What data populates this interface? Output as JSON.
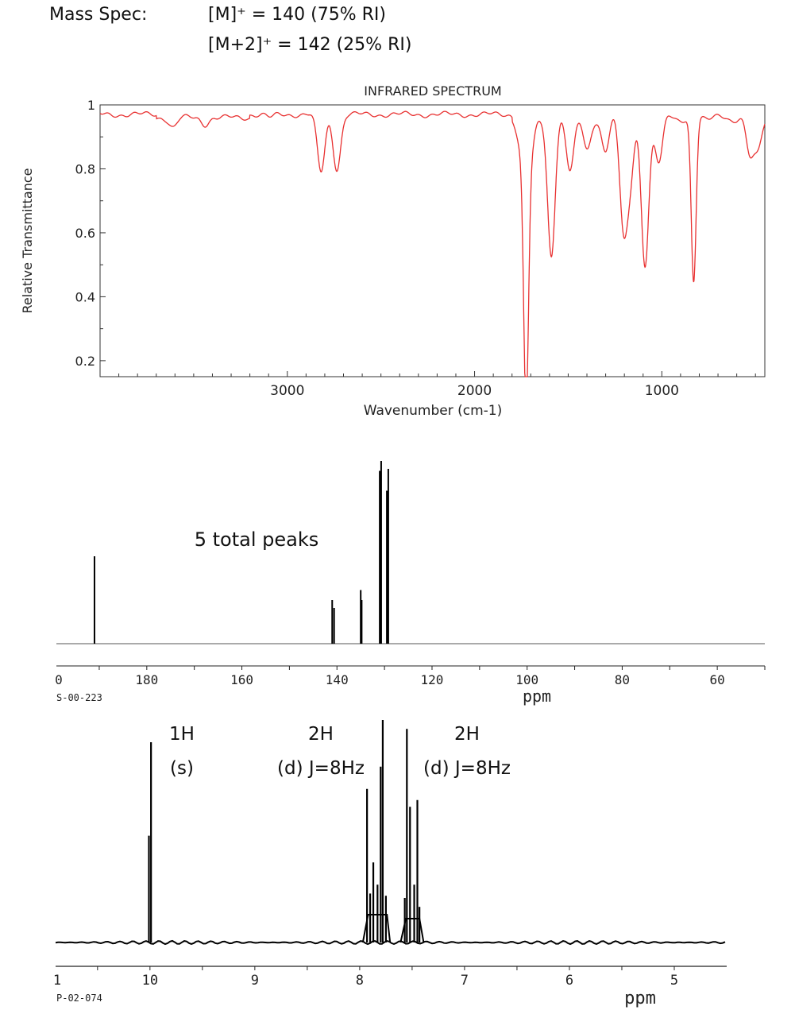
{
  "mass_spec": {
    "label": "Mass Spec:",
    "line1": "[M]⁺ = 140 (75% RI)",
    "line2": "[M+2]⁺ = 142 (25% RI)"
  },
  "chart_data": [
    {
      "type": "line",
      "title": "INFRARED SPECTRUM",
      "xlabel": "Wavenumber (cm-1)",
      "ylabel": "Relative Transmittance",
      "xlim": [
        4000,
        450
      ],
      "ylim": [
        0.15,
        1.0
      ],
      "x_ticks": [
        3000,
        2000,
        1000
      ],
      "y_ticks": [
        0.2,
        0.4,
        0.6,
        0.8,
        1
      ],
      "y_tick_labels": [
        "0.2",
        "0.4",
        "0.6",
        "0.8",
        "1"
      ],
      "color": "#e83030",
      "baseline": 0.97,
      "dips": [
        {
          "x": 3610,
          "y": 0.94
        },
        {
          "x": 3440,
          "y": 0.95
        },
        {
          "x": 3090,
          "y": 0.96
        },
        {
          "x": 2820,
          "y": 0.79
        },
        {
          "x": 2735,
          "y": 0.8
        },
        {
          "x": 1750,
          "y": 0.88
        },
        {
          "x": 1725,
          "y": 0.15
        },
        {
          "x": 1700,
          "y": 0.85
        },
        {
          "x": 1590,
          "y": 0.54
        },
        {
          "x": 1490,
          "y": 0.81
        },
        {
          "x": 1400,
          "y": 0.86
        },
        {
          "x": 1300,
          "y": 0.87
        },
        {
          "x": 1205,
          "y": 0.64
        },
        {
          "x": 1170,
          "y": 0.79
        },
        {
          "x": 1090,
          "y": 0.51
        },
        {
          "x": 1015,
          "y": 0.83
        },
        {
          "x": 830,
          "y": 0.45
        },
        {
          "x": 530,
          "y": 0.85
        },
        {
          "x": 490,
          "y": 0.88
        }
      ]
    },
    {
      "type": "bar",
      "title": "",
      "xlabel": "ppm",
      "x_ticks": [
        180,
        160,
        140,
        120,
        100,
        80,
        60
      ],
      "xlim": [
        191,
        50
      ],
      "ylim": [
        0,
        1
      ],
      "code": "S-00-223",
      "annotation": "5 total peaks",
      "peaks": [
        {
          "x": 191.0,
          "y": 0.44
        },
        {
          "x": 141.0,
          "y": 0.22
        },
        {
          "x": 140.6,
          "y": 0.18
        },
        {
          "x": 135.0,
          "y": 0.27
        },
        {
          "x": 134.8,
          "y": 0.22
        },
        {
          "x": 131.0,
          "y": 0.87
        },
        {
          "x": 130.7,
          "y": 0.92
        },
        {
          "x": 129.5,
          "y": 0.77
        },
        {
          "x": 129.2,
          "y": 0.88
        }
      ]
    },
    {
      "type": "line",
      "title": "",
      "xlabel": "ppm",
      "x_ticks": [
        10,
        9,
        8,
        7,
        6,
        5
      ],
      "xlim": [
        10.9,
        4.5
      ],
      "ylim": [
        0,
        1
      ],
      "code": "P-02-074",
      "peaks": [
        {
          "x": 10.01,
          "y": 0.48
        },
        {
          "x": 9.99,
          "y": 0.9
        },
        {
          "x": 7.93,
          "y": 0.69
        },
        {
          "x": 7.9,
          "y": 0.22
        },
        {
          "x": 7.87,
          "y": 0.36
        },
        {
          "x": 7.83,
          "y": 0.26
        },
        {
          "x": 7.8,
          "y": 0.79
        },
        {
          "x": 7.78,
          "y": 1.0
        },
        {
          "x": 7.75,
          "y": 0.21
        },
        {
          "x": 7.57,
          "y": 0.2
        },
        {
          "x": 7.55,
          "y": 0.96
        },
        {
          "x": 7.52,
          "y": 0.61
        },
        {
          "x": 7.48,
          "y": 0.26
        },
        {
          "x": 7.45,
          "y": 0.64
        },
        {
          "x": 7.43,
          "y": 0.16
        }
      ],
      "annotations": [
        {
          "line1": "1H",
          "line2": "(s)"
        },
        {
          "line1": "2H",
          "line2": "(d) J=8Hz"
        },
        {
          "line1": "2H",
          "line2": "(d) J=8Hz"
        }
      ]
    }
  ]
}
